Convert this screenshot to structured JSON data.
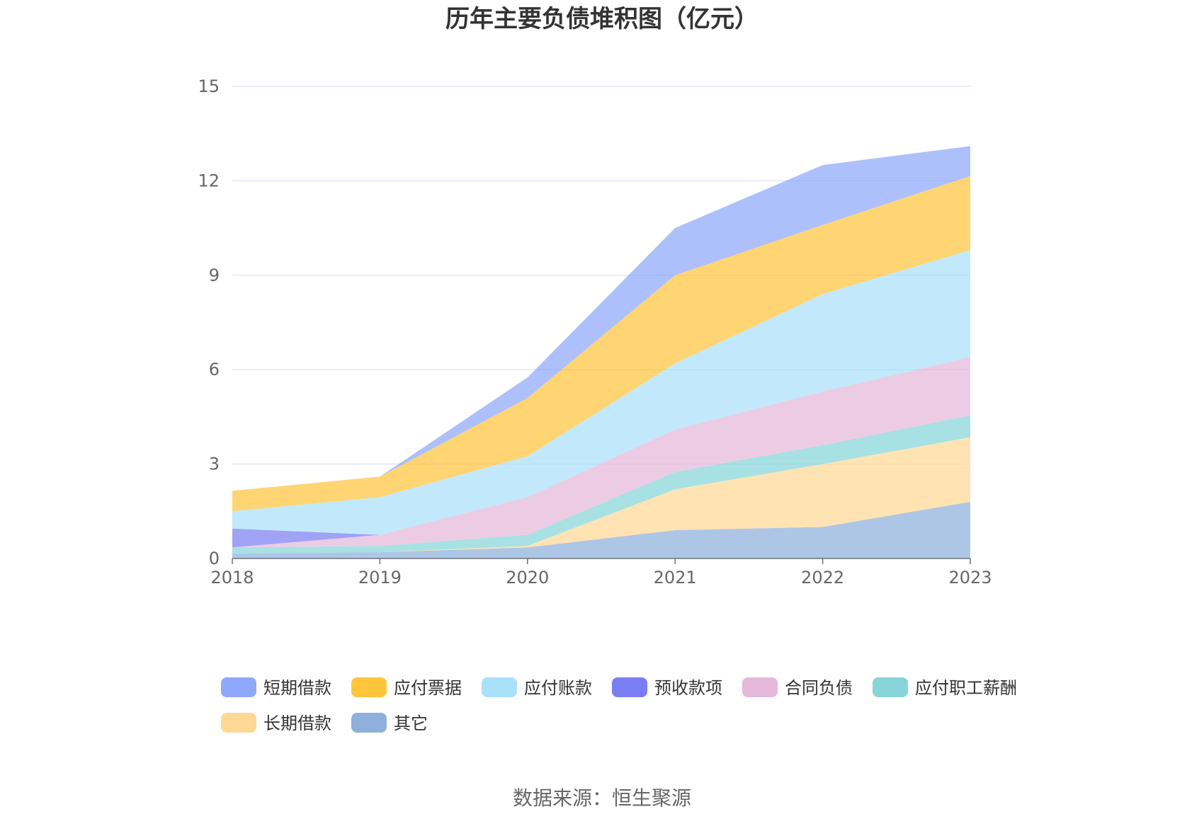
{
  "chart_data": {
    "type": "area",
    "stacked": true,
    "title": "历年主要负债堆积图（亿元）",
    "source": "数据来源：恒生聚源",
    "categories": [
      "2018",
      "2019",
      "2020",
      "2021",
      "2022",
      "2023"
    ],
    "y_ticks": [
      "0",
      "3",
      "6",
      "9",
      "12",
      "15"
    ],
    "ylim": [
      0,
      15
    ],
    "xlabel": "",
    "ylabel": "",
    "grid": true,
    "legend_position": "bottom",
    "series": [
      {
        "name": "其它",
        "color": "#8fb0dd",
        "values": [
          0.15,
          0.2,
          0.35,
          0.9,
          1.0,
          1.8
        ]
      },
      {
        "name": "长期借款",
        "color": "#ffd896",
        "values": [
          0.0,
          0.0,
          0.05,
          1.3,
          2.0,
          2.05
        ]
      },
      {
        "name": "应付职工薪酬",
        "color": "#87d5d8",
        "values": [
          0.2,
          0.2,
          0.35,
          0.55,
          0.6,
          0.7
        ]
      },
      {
        "name": "合同负债",
        "color": "#e5b8da",
        "values": [
          0.0,
          0.35,
          1.2,
          1.35,
          1.7,
          1.85
        ]
      },
      {
        "name": "预收款项",
        "color": "#7b7ef2",
        "values": [
          0.6,
          0.0,
          0.0,
          0.0,
          0.0,
          0.0
        ]
      },
      {
        "name": "应付账款",
        "color": "#a9e1fa",
        "values": [
          0.55,
          1.2,
          1.3,
          2.1,
          3.1,
          3.4
        ]
      },
      {
        "name": "应付票据",
        "color": "#ffc53d",
        "values": [
          0.65,
          0.65,
          1.85,
          2.8,
          2.2,
          2.35
        ]
      },
      {
        "name": "短期借款",
        "color": "#8ea8fb",
        "values": [
          0.0,
          0.0,
          0.65,
          1.5,
          1.9,
          0.95
        ]
      }
    ],
    "legend_order": [
      "短期借款",
      "应付票据",
      "应付账款",
      "预收款项",
      "合同负债",
      "应付职工薪酬",
      "长期借款",
      "其它"
    ]
  }
}
